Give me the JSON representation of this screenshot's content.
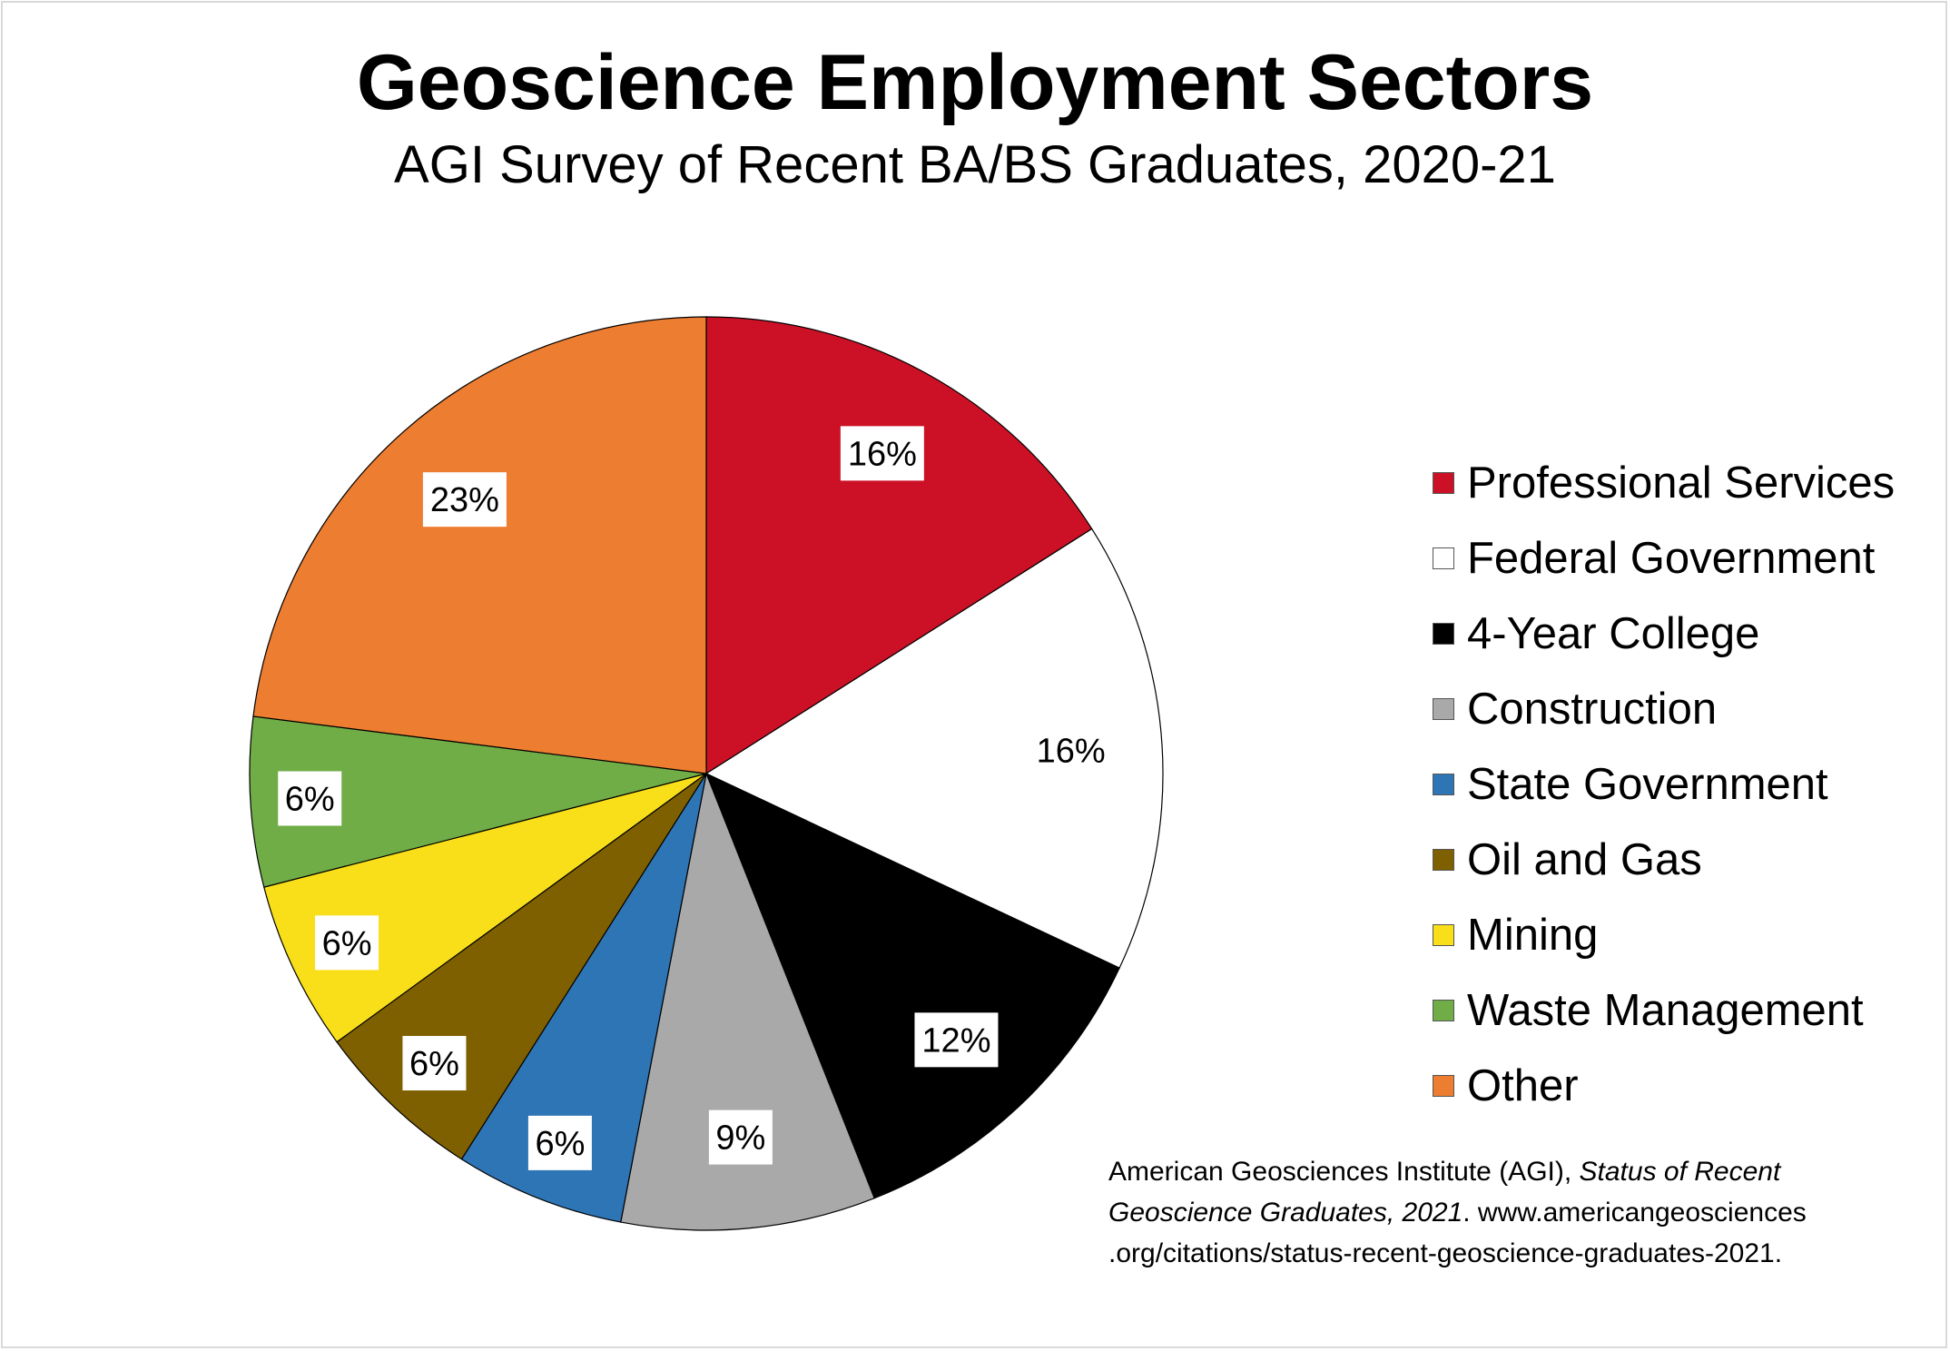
{
  "chart_data": {
    "type": "pie",
    "title": "Geoscience Employment Sectors",
    "subtitle": "AGI Survey of Recent BA/BS Graduates, 2020-21",
    "start": "top, clockwise",
    "legend_position": "right",
    "slices": [
      {
        "label": "Professional Services",
        "value": 16,
        "data_label": "16%",
        "color": "#cc1126"
      },
      {
        "label": "Federal Government",
        "value": 16,
        "data_label": "16%",
        "color": "#ffffff"
      },
      {
        "label": "4-Year College",
        "value": 12,
        "data_label": "12%",
        "color": "#000000"
      },
      {
        "label": "Construction",
        "value": 9,
        "data_label": "9%",
        "color": "#a9a9a9"
      },
      {
        "label": "State Government",
        "value": 6,
        "data_label": "6%",
        "color": "#2e75b6"
      },
      {
        "label": "Oil and Gas",
        "value": 6,
        "data_label": "6%",
        "color": "#7f6000"
      },
      {
        "label": "Mining",
        "value": 6,
        "data_label": "6%",
        "color": "#f8df1a"
      },
      {
        "label": "Waste Management",
        "value": 6,
        "data_label": "6%",
        "color": "#70ad47"
      },
      {
        "label": "Other",
        "value": 23,
        "data_label": "23%",
        "color": "#ed7d31"
      }
    ]
  },
  "caption": {
    "line1_plain": "American Geosciences Institute (AGI), ",
    "line1_italic": "Status of Recent",
    "line2_italic": "Geoscience Graduates, 2021",
    "line2_plain": ".  www.americangeosciences",
    "line3_plain": ".org/citations/status-recent-geoscience-graduates-2021."
  }
}
